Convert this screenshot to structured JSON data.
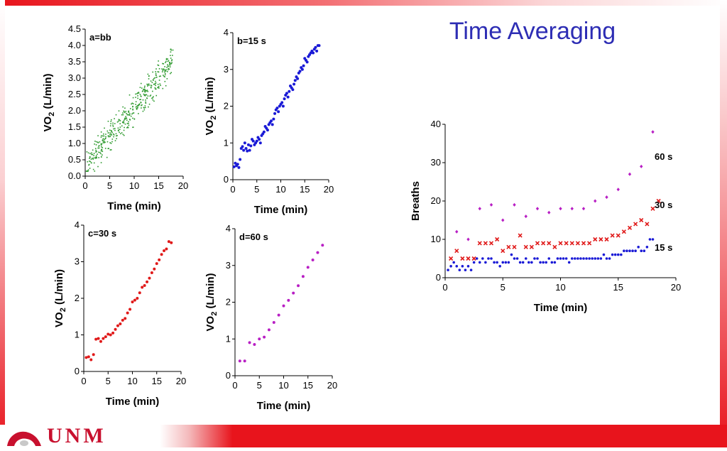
{
  "slide": {
    "title": "Time Averaging",
    "logo_text": "UNM"
  },
  "chart_data": [
    {
      "type": "scatter",
      "panel_label": "a=bb",
      "xlabel": "Time (min)",
      "ylabel": "VO2 (L/min)",
      "xlim": [
        0,
        20
      ],
      "ylim": [
        0,
        4.5
      ],
      "xticks": [
        0,
        5,
        10,
        15,
        20
      ],
      "yticks": [
        "0.0",
        "0.5",
        "1.0",
        "1.5",
        "2.0",
        "2.5",
        "3.0",
        "3.5",
        "4.0",
        "4.5"
      ],
      "color": "#2e9a2e",
      "trend": [
        [
          0.2,
          0.35
        ],
        [
          18,
          3.55
        ]
      ],
      "x_range": [
        0.2,
        18
      ]
    },
    {
      "type": "scatter",
      "panel_label": "b=15 s",
      "xlabel": "Time (min)",
      "ylabel": "VO2 (L/min)",
      "xlim": [
        0,
        20
      ],
      "ylim": [
        0,
        4
      ],
      "xticks": [
        0,
        5,
        10,
        15,
        20
      ],
      "yticks": [
        "0",
        "1",
        "2",
        "3",
        "4"
      ],
      "color": "#1a1ad6",
      "points": [
        [
          0.25,
          0.35
        ],
        [
          0.5,
          0.45
        ],
        [
          0.75,
          0.38
        ],
        [
          1,
          0.42
        ],
        [
          1.25,
          0.33
        ],
        [
          1.5,
          0.55
        ],
        [
          1.75,
          0.85
        ],
        [
          2,
          0.9
        ],
        [
          2.25,
          0.8
        ],
        [
          2.5,
          1.0
        ],
        [
          2.75,
          0.85
        ],
        [
          3,
          0.78
        ],
        [
          3.25,
          0.95
        ],
        [
          3.5,
          0.8
        ],
        [
          3.75,
          0.92
        ],
        [
          4,
          1.1
        ],
        [
          4.25,
          1.05
        ],
        [
          4.5,
          0.95
        ],
        [
          4.75,
          1.0
        ],
        [
          5,
          1.05
        ],
        [
          5.25,
          1.15
        ],
        [
          5.5,
          1.1
        ],
        [
          5.75,
          1.0
        ],
        [
          6,
          1.2
        ],
        [
          6.25,
          1.25
        ],
        [
          6.5,
          1.3
        ],
        [
          6.75,
          1.45
        ],
        [
          7,
          1.4
        ],
        [
          7.25,
          1.35
        ],
        [
          7.5,
          1.5
        ],
        [
          7.75,
          1.55
        ],
        [
          8,
          1.6
        ],
        [
          8.25,
          1.5
        ],
        [
          8.5,
          1.65
        ],
        [
          8.75,
          1.8
        ],
        [
          9,
          1.9
        ],
        [
          9.25,
          1.95
        ],
        [
          9.5,
          1.85
        ],
        [
          9.75,
          2.0
        ],
        [
          10,
          2.05
        ],
        [
          10.25,
          2.1
        ],
        [
          10.5,
          2.0
        ],
        [
          10.75,
          2.2
        ],
        [
          11,
          2.3
        ],
        [
          11.25,
          2.35
        ],
        [
          11.5,
          2.25
        ],
        [
          11.75,
          2.4
        ],
        [
          12,
          2.55
        ],
        [
          12.25,
          2.5
        ],
        [
          12.5,
          2.45
        ],
        [
          12.75,
          2.6
        ],
        [
          13,
          2.7
        ],
        [
          13.25,
          2.8
        ],
        [
          13.5,
          2.75
        ],
        [
          13.75,
          2.9
        ],
        [
          14,
          2.95
        ],
        [
          14.25,
          3.05
        ],
        [
          14.5,
          3.0
        ],
        [
          14.75,
          3.1
        ],
        [
          15,
          3.3
        ],
        [
          15.25,
          3.25
        ],
        [
          15.5,
          3.2
        ],
        [
          15.75,
          3.35
        ],
        [
          16,
          3.4
        ],
        [
          16.25,
          3.45
        ],
        [
          16.5,
          3.5
        ],
        [
          16.75,
          3.45
        ],
        [
          17,
          3.55
        ],
        [
          17.25,
          3.6
        ],
        [
          17.5,
          3.5
        ],
        [
          17.75,
          3.65
        ],
        [
          18,
          3.65
        ]
      ]
    },
    {
      "type": "scatter",
      "panel_label": "c=30 s",
      "xlabel": "Time (min)",
      "ylabel": "VO2 (L/min)",
      "xlim": [
        0,
        20
      ],
      "ylim": [
        0,
        4
      ],
      "xticks": [
        0,
        5,
        10,
        15,
        20
      ],
      "yticks": [
        "0",
        "1",
        "2",
        "3",
        "4"
      ],
      "color": "#e01a1a",
      "points": [
        [
          0.5,
          0.38
        ],
        [
          1,
          0.4
        ],
        [
          1.5,
          0.32
        ],
        [
          2,
          0.46
        ],
        [
          2.5,
          0.88
        ],
        [
          3,
          0.9
        ],
        [
          3.5,
          0.82
        ],
        [
          4,
          0.9
        ],
        [
          4.5,
          0.95
        ],
        [
          5,
          1.02
        ],
        [
          5.5,
          1.0
        ],
        [
          6,
          1.05
        ],
        [
          6.5,
          1.15
        ],
        [
          7,
          1.25
        ],
        [
          7.5,
          1.3
        ],
        [
          8,
          1.4
        ],
        [
          8.5,
          1.45
        ],
        [
          9,
          1.6
        ],
        [
          9.5,
          1.7
        ],
        [
          10,
          1.9
        ],
        [
          10.5,
          1.95
        ],
        [
          11,
          2.0
        ],
        [
          11.5,
          2.15
        ],
        [
          12,
          2.3
        ],
        [
          12.5,
          2.35
        ],
        [
          13,
          2.45
        ],
        [
          13.5,
          2.55
        ],
        [
          14,
          2.7
        ],
        [
          14.5,
          2.8
        ],
        [
          15,
          2.95
        ],
        [
          15.5,
          3.05
        ],
        [
          16,
          3.2
        ],
        [
          16.5,
          3.3
        ],
        [
          17,
          3.35
        ],
        [
          17.5,
          3.55
        ],
        [
          18,
          3.52
        ]
      ]
    },
    {
      "type": "scatter",
      "panel_label": "d=60 s",
      "xlabel": "Time (min)",
      "ylabel": "VO2 (L/min)",
      "xlim": [
        0,
        20
      ],
      "ylim": [
        0,
        4
      ],
      "xticks": [
        0,
        5,
        10,
        15,
        20
      ],
      "yticks": [
        "0",
        "1",
        "2",
        "3",
        "4"
      ],
      "color": "#b81fc4",
      "points": [
        [
          1,
          0.4
        ],
        [
          2,
          0.4
        ],
        [
          3,
          0.9
        ],
        [
          4,
          0.85
        ],
        [
          5,
          1.0
        ],
        [
          6,
          1.05
        ],
        [
          7,
          1.25
        ],
        [
          8,
          1.45
        ],
        [
          9,
          1.65
        ],
        [
          10,
          1.9
        ],
        [
          11,
          2.05
        ],
        [
          12,
          2.25
        ],
        [
          13,
          2.45
        ],
        [
          14,
          2.7
        ],
        [
          15,
          2.95
        ],
        [
          16,
          3.15
        ],
        [
          17,
          3.35
        ],
        [
          18,
          3.55
        ]
      ]
    },
    {
      "type": "scatter",
      "xlabel": "Time (min)",
      "ylabel": "Breaths",
      "xlim": [
        0,
        20
      ],
      "ylim": [
        0,
        40
      ],
      "xticks": [
        0,
        5,
        10,
        15,
        20
      ],
      "yticks": [
        0,
        10,
        20,
        30,
        40
      ],
      "series": [
        {
          "name": "15 s",
          "color": "#1a1ad6",
          "marker": "dot",
          "points": [
            [
              0.25,
              2
            ],
            [
              0.5,
              3
            ],
            [
              0.75,
              4
            ],
            [
              1,
              3
            ],
            [
              1.25,
              2
            ],
            [
              1.5,
              3
            ],
            [
              1.75,
              2
            ],
            [
              2,
              3
            ],
            [
              2.25,
              2
            ],
            [
              2.5,
              4
            ],
            [
              2.75,
              5
            ],
            [
              3,
              4
            ],
            [
              3.25,
              5
            ],
            [
              3.5,
              4
            ],
            [
              3.75,
              5
            ],
            [
              4,
              5
            ],
            [
              4.25,
              4
            ],
            [
              4.5,
              4
            ],
            [
              4.75,
              3
            ],
            [
              5,
              4
            ],
            [
              5.25,
              4
            ],
            [
              5.5,
              4
            ],
            [
              5.75,
              6
            ],
            [
              6,
              5
            ],
            [
              6.25,
              5
            ],
            [
              6.5,
              4
            ],
            [
              6.75,
              4
            ],
            [
              7,
              5
            ],
            [
              7.25,
              4
            ],
            [
              7.5,
              4
            ],
            [
              7.75,
              5
            ],
            [
              8,
              5
            ],
            [
              8.25,
              4
            ],
            [
              8.5,
              4
            ],
            [
              8.75,
              4
            ],
            [
              9,
              5
            ],
            [
              9.25,
              4
            ],
            [
              9.5,
              4
            ],
            [
              9.75,
              5
            ],
            [
              10,
              5
            ],
            [
              10.25,
              5
            ],
            [
              10.5,
              5
            ],
            [
              10.75,
              4
            ],
            [
              11,
              5
            ],
            [
              11.25,
              5
            ],
            [
              11.5,
              5
            ],
            [
              11.75,
              5
            ],
            [
              12,
              5
            ],
            [
              12.25,
              5
            ],
            [
              12.5,
              5
            ],
            [
              12.75,
              5
            ],
            [
              13,
              5
            ],
            [
              13.25,
              5
            ],
            [
              13.5,
              5
            ],
            [
              13.75,
              6
            ],
            [
              14,
              5
            ],
            [
              14.25,
              5
            ],
            [
              14.5,
              6
            ],
            [
              14.75,
              6
            ],
            [
              15,
              6
            ],
            [
              15.25,
              6
            ],
            [
              15.5,
              7
            ],
            [
              15.75,
              7
            ],
            [
              16,
              7
            ],
            [
              16.25,
              7
            ],
            [
              16.5,
              7
            ],
            [
              16.75,
              8
            ],
            [
              17,
              7
            ],
            [
              17.25,
              7
            ],
            [
              17.5,
              8
            ],
            [
              17.75,
              10
            ],
            [
              18,
              10
            ]
          ]
        },
        {
          "name": "30 s",
          "color": "#e01a1a",
          "marker": "cross",
          "points": [
            [
              0.5,
              5
            ],
            [
              1,
              7
            ],
            [
              1.5,
              5
            ],
            [
              2,
              5
            ],
            [
              2.5,
              5
            ],
            [
              3,
              9
            ],
            [
              3.5,
              9
            ],
            [
              4,
              9
            ],
            [
              4.5,
              10
            ],
            [
              5,
              7
            ],
            [
              5.5,
              8
            ],
            [
              6,
              8
            ],
            [
              6.5,
              11
            ],
            [
              7,
              8
            ],
            [
              7.5,
              8
            ],
            [
              8,
              9
            ],
            [
              8.5,
              9
            ],
            [
              9,
              9
            ],
            [
              9.5,
              8
            ],
            [
              10,
              9
            ],
            [
              10.5,
              9
            ],
            [
              11,
              9
            ],
            [
              11.5,
              9
            ],
            [
              12,
              9
            ],
            [
              12.5,
              9
            ],
            [
              13,
              10
            ],
            [
              13.5,
              10
            ],
            [
              14,
              10
            ],
            [
              14.5,
              11
            ],
            [
              15,
              11
            ],
            [
              15.5,
              12
            ],
            [
              16,
              13
            ],
            [
              16.5,
              14
            ],
            [
              17,
              15
            ],
            [
              17.5,
              14
            ],
            [
              18,
              18
            ],
            [
              18.5,
              20
            ]
          ]
        },
        {
          "name": "60 s",
          "color": "#b81fc4",
          "marker": "diamond",
          "points": [
            [
              1,
              12
            ],
            [
              2,
              10
            ],
            [
              3,
              18
            ],
            [
              4,
              19
            ],
            [
              5,
              15
            ],
            [
              6,
              19
            ],
            [
              7,
              16
            ],
            [
              8,
              18
            ],
            [
              9,
              17
            ],
            [
              10,
              18
            ],
            [
              11,
              18
            ],
            [
              12,
              18
            ],
            [
              13,
              20
            ],
            [
              14,
              21
            ],
            [
              15,
              23
            ],
            [
              16,
              27
            ],
            [
              17,
              29
            ],
            [
              18,
              38
            ]
          ]
        }
      ]
    }
  ]
}
